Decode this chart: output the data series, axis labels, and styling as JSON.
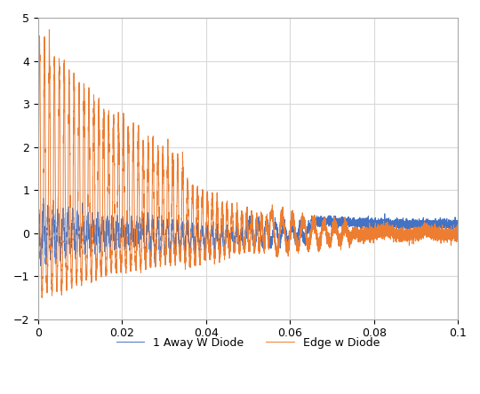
{
  "title": "",
  "xlabel": "",
  "ylabel": "",
  "xlim": [
    0,
    0.1
  ],
  "ylim": [
    -2,
    5
  ],
  "yticks": [
    -2,
    -1,
    0,
    1,
    2,
    3,
    4,
    5
  ],
  "xticks": [
    0,
    0.02,
    0.04,
    0.06,
    0.08,
    0.1
  ],
  "xtick_labels": [
    "0",
    "0.02",
    "0.04",
    "0.06",
    "0.08",
    "0.1"
  ],
  "color_blue": "#4472C4",
  "color_orange": "#ED7D31",
  "legend_labels": [
    "1 Away W Diode",
    "Edge w Diode"
  ],
  "background_color": "#FFFFFF",
  "grid_color": "#D9D9D9",
  "figsize": [
    5.4,
    4.44
  ],
  "dpi": 100
}
